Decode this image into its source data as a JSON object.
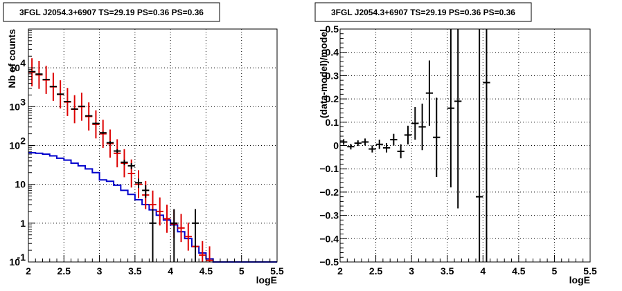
{
  "colors": {
    "data": "#000000",
    "model": "#dd0000",
    "background": "#0000cc"
  },
  "chart_data": [
    {
      "type": "line",
      "title": "3FGL J2054.3+6907 TS=29.19 PS=0.36 PS=0.36",
      "xlabel": "logE",
      "ylabel": "Nb of counts",
      "xlim": [
        2,
        5.5
      ],
      "ylim": [
        0.1,
        100000
      ],
      "yscale": "log",
      "grid": true,
      "xticks": [
        "2",
        "2.5",
        "3",
        "3.5",
        "4",
        "4.5",
        "5",
        "5.5"
      ],
      "yticks": [
        {
          "value": 0.1,
          "base": "10",
          "exp": "-1"
        },
        {
          "value": 1,
          "base": "1",
          "exp": ""
        },
        {
          "value": 10,
          "base": "10",
          "exp": ""
        },
        {
          "value": 100,
          "base": "10",
          "exp": "2"
        },
        {
          "value": 1000,
          "base": "10",
          "exp": "3"
        },
        {
          "value": 10000,
          "base": "10",
          "exp": "4"
        }
      ],
      "bin_width": 0.1,
      "data_points": [
        {
          "x": 2.05,
          "y": 8000,
          "lo": 7900,
          "hi": 8100
        },
        {
          "x": 2.15,
          "y": 6900,
          "lo": 6800,
          "hi": 7000
        },
        {
          "x": 2.25,
          "y": 5000,
          "lo": 4930,
          "hi": 5070
        },
        {
          "x": 2.35,
          "y": 3300,
          "lo": 3240,
          "hi": 3360
        },
        {
          "x": 2.45,
          "y": 2100,
          "lo": 2050,
          "hi": 2150
        },
        {
          "x": 2.55,
          "y": 1350,
          "lo": 1315,
          "hi": 1385
        },
        {
          "x": 2.65,
          "y": 870,
          "lo": 840,
          "hi": 900
        },
        {
          "x": 2.75,
          "y": 1020,
          "lo": 990,
          "hi": 1050
        },
        {
          "x": 2.85,
          "y": 580,
          "lo": 556,
          "hi": 604
        },
        {
          "x": 2.95,
          "y": 370,
          "lo": 350,
          "hi": 390
        },
        {
          "x": 3.05,
          "y": 212,
          "lo": 198,
          "hi": 226
        },
        {
          "x": 3.15,
          "y": 118,
          "lo": 107,
          "hi": 129
        },
        {
          "x": 3.25,
          "y": 72,
          "lo": 64,
          "hi": 80
        },
        {
          "x": 3.35,
          "y": 37,
          "lo": 31,
          "hi": 43
        },
        {
          "x": 3.45,
          "y": 30,
          "lo": 25,
          "hi": 35
        },
        {
          "x": 3.55,
          "y": 11,
          "lo": 8,
          "hi": 14
        },
        {
          "x": 3.65,
          "y": 7,
          "lo": 4.5,
          "hi": 9.5
        },
        {
          "x": 3.75,
          "y": 1,
          "lo": 0.1,
          "hi": 2.3
        },
        {
          "x": 4.05,
          "y": 1,
          "lo": 0.1,
          "hi": 2.3
        },
        {
          "x": 4.35,
          "y": 1,
          "lo": 0.1,
          "hi": 2.3
        }
      ],
      "model_points": [
        {
          "x": 2.05,
          "y": 7700
        },
        {
          "x": 2.15,
          "y": 6600
        },
        {
          "x": 2.25,
          "y": 4900
        },
        {
          "x": 2.35,
          "y": 3250
        },
        {
          "x": 2.45,
          "y": 2080
        },
        {
          "x": 2.55,
          "y": 1320
        },
        {
          "x": 2.65,
          "y": 860
        },
        {
          "x": 2.75,
          "y": 1000
        },
        {
          "x": 2.85,
          "y": 560
        },
        {
          "x": 2.95,
          "y": 350
        },
        {
          "x": 3.05,
          "y": 200
        },
        {
          "x": 3.15,
          "y": 112
        },
        {
          "x": 3.25,
          "y": 63
        },
        {
          "x": 3.35,
          "y": 35
        },
        {
          "x": 3.45,
          "y": 19
        },
        {
          "x": 3.55,
          "y": 10
        },
        {
          "x": 3.65,
          "y": 5.3
        },
        {
          "x": 3.75,
          "y": 3.0
        },
        {
          "x": 3.85,
          "y": 2.0
        },
        {
          "x": 3.95,
          "y": 1.3
        },
        {
          "x": 4.05,
          "y": 0.95
        },
        {
          "x": 4.15,
          "y": 0.75
        },
        {
          "x": 4.25,
          "y": 0.45
        },
        {
          "x": 4.35,
          "y": 0.25
        },
        {
          "x": 4.45,
          "y": 0.15
        },
        {
          "x": 4.55,
          "y": 0.11
        }
      ],
      "model_err_factor": 2.3,
      "background_steps": [
        {
          "x0": 2.0,
          "x1": 2.1,
          "y": 65
        },
        {
          "x0": 2.1,
          "x1": 2.2,
          "y": 63
        },
        {
          "x0": 2.2,
          "x1": 2.3,
          "y": 60
        },
        {
          "x0": 2.3,
          "x1": 2.4,
          "y": 54
        },
        {
          "x0": 2.4,
          "x1": 2.5,
          "y": 47
        },
        {
          "x0": 2.5,
          "x1": 2.6,
          "y": 42
        },
        {
          "x0": 2.6,
          "x1": 2.7,
          "y": 35
        },
        {
          "x0": 2.7,
          "x1": 2.8,
          "y": 30
        },
        {
          "x0": 2.8,
          "x1": 2.9,
          "y": 25
        },
        {
          "x0": 2.9,
          "x1": 3.0,
          "y": 20
        },
        {
          "x0": 3.0,
          "x1": 3.1,
          "y": 13
        },
        {
          "x0": 3.1,
          "x1": 3.2,
          "y": 12
        },
        {
          "x0": 3.2,
          "x1": 3.3,
          "y": 9.5
        },
        {
          "x0": 3.3,
          "x1": 3.4,
          "y": 7
        },
        {
          "x0": 3.4,
          "x1": 3.5,
          "y": 5.5
        },
        {
          "x0": 3.5,
          "x1": 3.6,
          "y": 4
        },
        {
          "x0": 3.6,
          "x1": 3.7,
          "y": 3
        },
        {
          "x0": 3.7,
          "x1": 3.8,
          "y": 2.2
        },
        {
          "x0": 3.8,
          "x1": 3.9,
          "y": 1.6
        },
        {
          "x0": 3.9,
          "x1": 4.0,
          "y": 1.2
        },
        {
          "x0": 4.0,
          "x1": 4.1,
          "y": 0.9
        },
        {
          "x0": 4.1,
          "x1": 4.2,
          "y": 0.6
        },
        {
          "x0": 4.2,
          "x1": 4.3,
          "y": 0.4
        },
        {
          "x0": 4.3,
          "x1": 4.4,
          "y": 0.25
        },
        {
          "x0": 4.4,
          "x1": 4.5,
          "y": 0.17
        },
        {
          "x0": 4.5,
          "x1": 4.6,
          "y": 0.12
        },
        {
          "x0": 4.6,
          "x1": 5.5,
          "y": 0.1
        }
      ]
    },
    {
      "type": "scatter",
      "title": "3FGL J2054.3+6907 TS=29.19 PS=0.36 PS=0.36",
      "xlabel": "logE",
      "ylabel": "(data-model)/model",
      "xlim": [
        2,
        5.5
      ],
      "ylim": [
        -0.5,
        0.5
      ],
      "grid": true,
      "xticks": [
        "2",
        "2.5",
        "3",
        "3.5",
        "4",
        "4.5",
        "5",
        "5.5"
      ],
      "yticks": [
        "−0.5",
        "−0.4",
        "−0.3",
        "−0.2",
        "−0.1",
        "0",
        "0.1",
        "0.2",
        "0.3",
        "0.4",
        "0.5"
      ],
      "bin_width": 0.1,
      "points": [
        {
          "x": 2.05,
          "y": 0.015,
          "err": 0.012
        },
        {
          "x": 2.15,
          "y": -0.005,
          "err": 0.012
        },
        {
          "x": 2.25,
          "y": 0.01,
          "err": 0.012
        },
        {
          "x": 2.35,
          "y": 0.015,
          "err": 0.015
        },
        {
          "x": 2.45,
          "y": -0.015,
          "err": 0.015
        },
        {
          "x": 2.55,
          "y": 0.005,
          "err": 0.02
        },
        {
          "x": 2.65,
          "y": -0.01,
          "err": 0.02
        },
        {
          "x": 2.75,
          "y": 0.025,
          "err": 0.025
        },
        {
          "x": 2.85,
          "y": -0.025,
          "err": 0.03
        },
        {
          "x": 2.95,
          "y": 0.045,
          "err": 0.04
        },
        {
          "x": 3.05,
          "y": 0.095,
          "err": 0.07
        },
        {
          "x": 3.15,
          "y": 0.08,
          "err": 0.1
        },
        {
          "x": 3.25,
          "y": 0.225,
          "err": 0.14
        },
        {
          "x": 3.35,
          "y": 0.035,
          "err": 0.17
        },
        {
          "x": 3.55,
          "y": 0.16,
          "err": 0.34
        },
        {
          "x": 3.65,
          "y": 0.19,
          "err": 0.46
        },
        {
          "x": 3.95,
          "y": -0.22,
          "err": 0.8
        },
        {
          "x": 4.05,
          "y": 0.27,
          "err": 0.8
        }
      ]
    }
  ]
}
